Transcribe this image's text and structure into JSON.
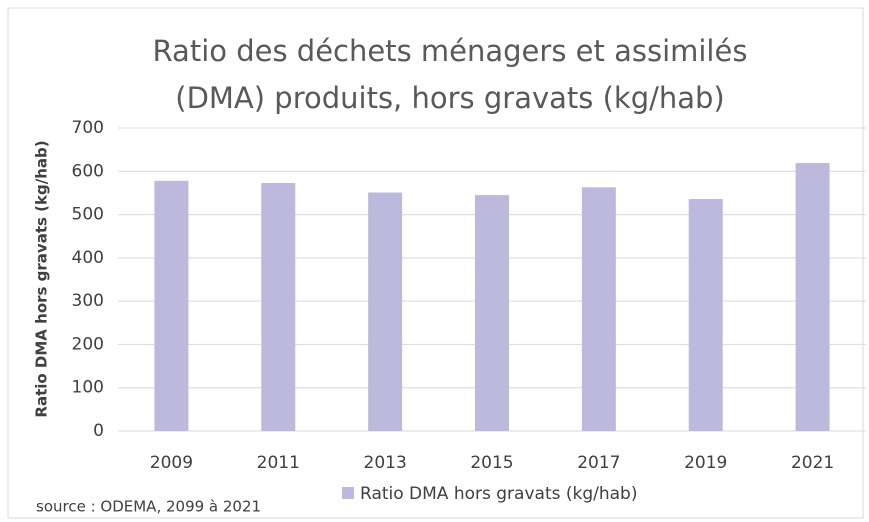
{
  "chart_data": {
    "type": "bar",
    "title": "Ratio des déchets ménagers et assimilés (DMA) produits, hors gravats (kg/hab)",
    "y_label": "Ratio DMA hors gravats (kg/hab)",
    "categories": [
      "2009",
      "2011",
      "2013",
      "2015",
      "2017",
      "2019",
      "2021"
    ],
    "series": [
      {
        "name": "Ratio DMA hors gravats (kg/hab)",
        "color": "#bcb9dc",
        "values": [
          578,
          573,
          551,
          545,
          563,
          536,
          619
        ]
      }
    ],
    "ylim": [
      0,
      700
    ],
    "yticks": [
      0,
      100,
      200,
      300,
      400,
      500,
      600,
      700
    ],
    "grid": true,
    "source": "source : ODEMA, 2099 à 2021"
  }
}
